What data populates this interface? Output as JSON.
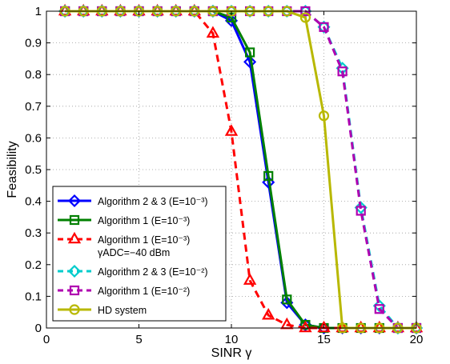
{
  "chart_data": {
    "type": "line",
    "xlabel": "SINR γ",
    "ylabel": "Feasibility",
    "xlim": [
      0,
      20
    ],
    "ylim": [
      0,
      1
    ],
    "grid": true,
    "legend_position": "bottom-left",
    "xticks": [
      "0",
      "5",
      "10",
      "15",
      "20"
    ],
    "yticks": [
      "0",
      "0.1",
      "0.2",
      "0.3",
      "0.4",
      "0.5",
      "0.6",
      "0.7",
      "0.8",
      "0.9",
      "1"
    ],
    "x": [
      1,
      2,
      3,
      4,
      5,
      6,
      7,
      8,
      9,
      10,
      11,
      12,
      13,
      14,
      15,
      16,
      17,
      18,
      19,
      20
    ],
    "series": [
      {
        "name": "Algorithm 2 & 3 (E=10⁻³)",
        "color": "#0000ff",
        "dash": "solid",
        "marker": "diamond",
        "values": [
          1,
          1,
          1,
          1,
          1,
          1,
          1,
          1,
          1,
          0.97,
          0.84,
          0.46,
          0.08,
          0.01,
          0,
          0,
          0,
          0,
          0,
          0
        ]
      },
      {
        "name": "Algorithm 1 (E=10⁻³)",
        "color": "#008000",
        "dash": "solid",
        "marker": "square",
        "values": [
          1,
          1,
          1,
          1,
          1,
          1,
          1,
          1,
          1,
          0.98,
          0.87,
          0.48,
          0.09,
          0.01,
          0,
          0,
          0,
          0,
          0,
          0
        ]
      },
      {
        "name": "Algorithm 1 (E=10⁻³)",
        "name_line2": "γADC=−40 dBm",
        "color": "#ff0000",
        "dash": "dashed",
        "marker": "triangle",
        "values": [
          1,
          1,
          1,
          1,
          1,
          1,
          1,
          1,
          0.93,
          0.62,
          0.15,
          0.04,
          0.01,
          0,
          0,
          0,
          0,
          0,
          0,
          0
        ]
      },
      {
        "name": "Algorithm 2 & 3 (E=10⁻²)",
        "color": "#00cccc",
        "dash": "dashed",
        "marker": "diamond",
        "values": [
          1,
          1,
          1,
          1,
          1,
          1,
          1,
          1,
          1,
          1,
          1,
          1,
          1,
          1,
          0.95,
          0.82,
          0.38,
          0.07,
          0,
          0
        ]
      },
      {
        "name": "Algorithm 1 (E=10⁻²)",
        "color": "#b000b0",
        "dash": "dashed",
        "marker": "square",
        "values": [
          1,
          1,
          1,
          1,
          1,
          1,
          1,
          1,
          1,
          1,
          1,
          1,
          1,
          1,
          0.95,
          0.81,
          0.37,
          0.06,
          0,
          0
        ]
      },
      {
        "name": "HD system",
        "color": "#b8b800",
        "dash": "solid",
        "marker": "circle",
        "values": [
          1,
          1,
          1,
          1,
          1,
          1,
          1,
          1,
          1,
          1,
          1,
          1,
          1,
          0.98,
          0.67,
          0,
          0,
          0,
          0,
          0
        ]
      }
    ]
  }
}
